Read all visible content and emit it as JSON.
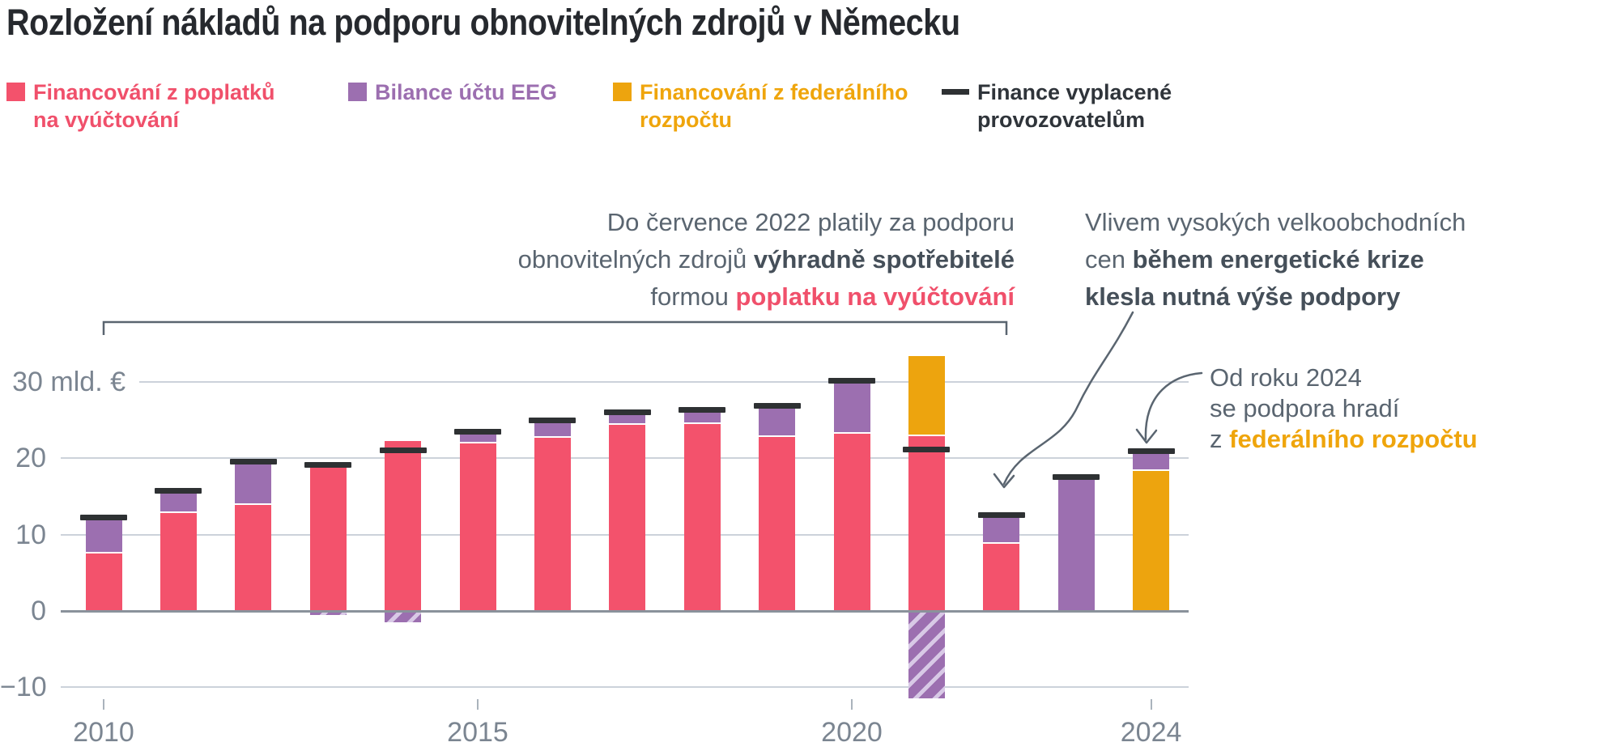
{
  "title": "Rozložení nákladů na podporu obnovitelných zdrojů v Německu",
  "legend": {
    "items": [
      {
        "swatch": "square",
        "color": "#f3526c",
        "text_color": "#f0506b",
        "lines": [
          "Financování z poplatků",
          "na vyúčtování"
        ]
      },
      {
        "swatch": "square",
        "color": "#9c6fb0",
        "text_color": "#9c6fb0",
        "lines": [
          "Bilance účtu EEG"
        ]
      },
      {
        "swatch": "square",
        "color": "#eda40e",
        "text_color": "#efa50c",
        "lines": [
          "Financování z federálního",
          "rozpočtu"
        ]
      },
      {
        "swatch": "line",
        "color": "#2e3133",
        "text_color": "#2f343a",
        "lines": [
          "Finance vyplacené",
          "provozovatelům"
        ]
      }
    ]
  },
  "annotations": [
    {
      "id": "consumer-period",
      "lines": [
        [
          {
            "t": "Do července 2022 platily za podporu",
            "s": "n"
          }
        ],
        [
          {
            "t": "obnovitelných zdrojů ",
            "s": "n"
          },
          {
            "t": "výhradně spotřebitelé",
            "s": "b"
          }
        ],
        [
          {
            "t": "formou ",
            "s": "n"
          },
          {
            "t": "poplatku na vyúčtování",
            "s": "rb"
          }
        ]
      ]
    },
    {
      "id": "energy-crisis",
      "lines": [
        [
          {
            "t": "Vlivem vysokých velkoobchodních",
            "s": "n"
          }
        ],
        [
          {
            "t": "cen ",
            "s": "n"
          },
          {
            "t": "během energetické krize",
            "s": "b"
          }
        ],
        [
          {
            "t": "klesla nutná výše podpory",
            "s": "b"
          }
        ]
      ]
    },
    {
      "id": "federal-budget",
      "lines": [
        [
          {
            "t": "Od roku 2024",
            "s": "n"
          }
        ],
        [
          {
            "t": "se podpora hradí",
            "s": "n"
          }
        ],
        [
          {
            "t": "z ",
            "s": "n"
          },
          {
            "t": "federálního rozpočtu",
            "s": "ob"
          }
        ]
      ]
    }
  ],
  "chart_data": {
    "type": "bar",
    "subtype": "stacked-with-markers",
    "unit": "mld. €",
    "ylim": [
      -12,
      34
    ],
    "grid": true,
    "years": [
      2010,
      2011,
      2012,
      2013,
      2014,
      2015,
      2016,
      2017,
      2018,
      2019,
      2020,
      2021,
      2022,
      2023,
      2024
    ],
    "series": [
      {
        "name": "Financování z poplatků na vyúčtování",
        "color": "#f3526c",
        "values": [
          7.5,
          12.8,
          13.9,
          18.8,
          22.3,
          22.0,
          22.7,
          24.4,
          24.5,
          22.8,
          23.2,
          22.9,
          8.8,
          0,
          0
        ]
      },
      {
        "name": "Financování z federálního rozpočtu",
        "color": "#eda40e",
        "values": [
          0,
          0,
          0,
          0,
          0,
          0,
          0,
          0,
          0,
          0,
          0,
          10.5,
          0,
          0,
          18.3
        ]
      },
      {
        "name": "Bilance účtu EEG",
        "color": "#9c6fb0",
        "negative_style": "hatched",
        "values": [
          4.4,
          2.7,
          5.5,
          -0.5,
          -1.5,
          1.4,
          2.2,
          1.5,
          1.7,
          4.0,
          6.9,
          -11.4,
          3.6,
          17.4,
          2.3
        ]
      }
    ],
    "payout": {
      "name": "Finance vyplacené provozovatelům",
      "color": "#2e3133",
      "values": [
        12.2,
        15.8,
        19.6,
        19.1,
        21.0,
        23.5,
        25.0,
        26.0,
        26.3,
        26.9,
        30.2,
        21.2,
        12.6,
        17.5,
        20.9
      ]
    },
    "y_ticks": [
      {
        "label": "30 mld. €",
        "value": 30
      },
      {
        "label": "20",
        "value": 20
      },
      {
        "label": "10",
        "value": 10
      },
      {
        "label": "0",
        "value": 0
      },
      {
        "label": "−10",
        "value": -10
      }
    ],
    "x_ticks": [
      {
        "label": "2010",
        "index": 0
      },
      {
        "label": "2015",
        "index": 5
      },
      {
        "label": "2020",
        "index": 10
      },
      {
        "label": "2024",
        "index": 14
      }
    ]
  }
}
